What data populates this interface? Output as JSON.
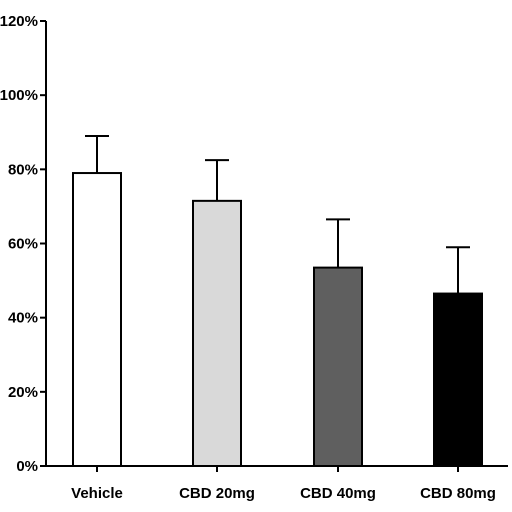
{
  "chart_data": {
    "type": "bar",
    "categories": [
      "Vehicle",
      "CBD 20mg",
      "CBD 40mg",
      "CBD 80mg"
    ],
    "values": [
      79,
      71.5,
      53.5,
      46.5
    ],
    "error_upper": [
      89,
      82.5,
      66.5,
      59
    ],
    "bar_colors": [
      "#ffffff",
      "#d9d9d9",
      "#5f5f5f",
      "#000000"
    ],
    "ylim": [
      0,
      120
    ],
    "yticks": [
      "0%",
      "20%",
      "40%",
      "60%",
      "80%",
      "100%",
      "120%"
    ],
    "grid": false,
    "legend": "none"
  }
}
